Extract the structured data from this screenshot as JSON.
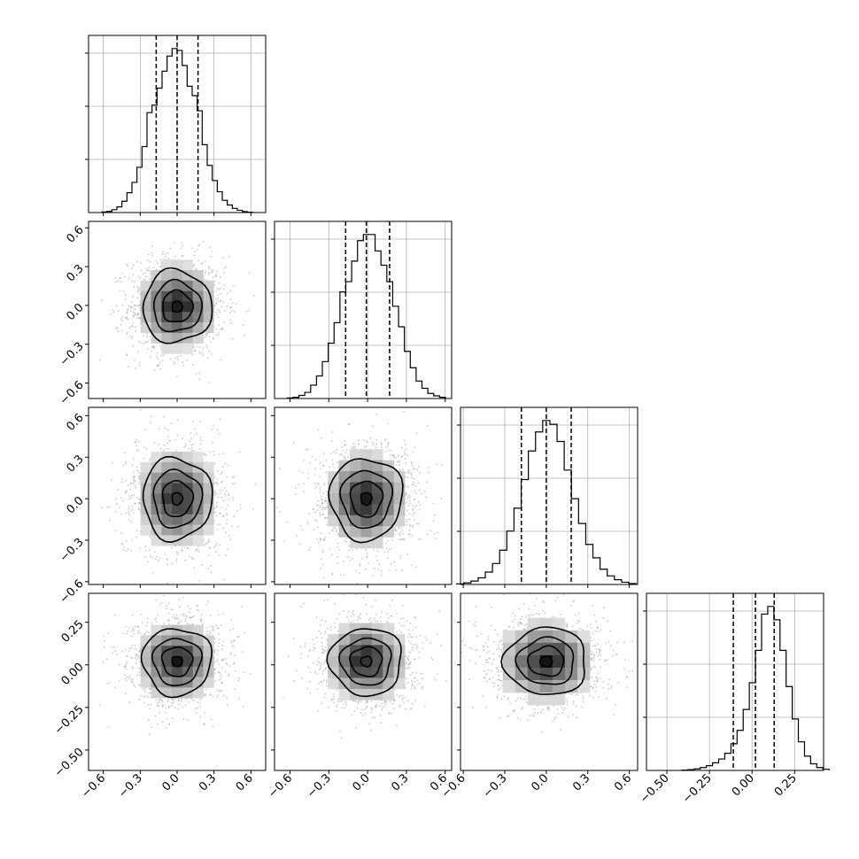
{
  "chart_data": {
    "type": "corner",
    "grid": true,
    "colors": {
      "ink": "#000000",
      "grid": "#b0b0b0",
      "scatter": "#9a9a9a",
      "background": "#ffffff"
    },
    "parameters": [
      {
        "range": [
          -0.72,
          0.72
        ],
        "ticks": [
          -0.6,
          -0.3,
          0.0,
          0.3,
          0.6
        ],
        "tick_labels": [
          "−0.6",
          "−0.3",
          "0.0",
          "0.3",
          "0.6"
        ],
        "quantiles": [
          -0.17,
          0.0,
          0.17
        ],
        "hist_counts": [
          0.3,
          0.6,
          1.5,
          3,
          6,
          10.5,
          16,
          24,
          35,
          53,
          57,
          66,
          75,
          83,
          87,
          86,
          78,
          67,
          62,
          54,
          36,
          25,
          17,
          11,
          6.5,
          4,
          2.2,
          1.2,
          0.5,
          0.2
        ]
      },
      {
        "range": [
          -0.72,
          0.65
        ],
        "ticks": [
          -0.6,
          -0.3,
          0.0,
          0.3,
          0.6
        ],
        "tick_labels": [
          "−0.6",
          "−0.3",
          "0.0",
          "0.3",
          "0.6"
        ],
        "quantiles": [
          -0.17,
          -0.01,
          0.17
        ],
        "hist_counts": [
          0.3,
          0.6,
          1.5,
          3,
          6.5,
          11,
          18,
          27,
          37,
          52,
          57,
          67,
          77,
          80,
          80,
          72,
          65,
          57,
          45,
          35,
          23,
          15,
          8.5,
          5,
          2.5,
          1.3,
          0.6
        ],
        "cov_with": [
          0,
          0
        ]
      },
      {
        "range": [
          -0.62,
          0.66
        ],
        "ticks": [
          -0.6,
          -0.3,
          0.0,
          0.3,
          0.6
        ],
        "tick_labels": [
          "−0.6",
          "−0.3",
          "0.0",
          "0.3",
          "0.6"
        ],
        "quantiles": [
          -0.18,
          0.0,
          0.18
        ],
        "hist_counts": [
          0.3,
          0.8,
          1.8,
          3.5,
          6.5,
          11,
          18,
          28,
          40,
          55,
          70,
          80,
          86,
          84,
          75,
          60,
          45,
          32,
          21,
          14,
          8,
          4.5,
          2.5,
          1.2,
          0.5
        ]
      },
      {
        "range": [
          -0.62,
          0.42
        ],
        "ticks": [
          -0.5,
          -0.25,
          0.0,
          0.25
        ],
        "tick_labels": [
          "−0.50",
          "−0.25",
          "0.00",
          "0.25"
        ],
        "quantiles": [
          -0.11,
          0.02,
          0.13
        ],
        "hist_counts": [
          0.2,
          0.4,
          0.8,
          1.5,
          2.5,
          4,
          6,
          9,
          14,
          21,
          32,
          46,
          63,
          82,
          86,
          79,
          63,
          44,
          27,
          15,
          7.5,
          3.5,
          1.5,
          0.6
        ]
      }
    ]
  }
}
